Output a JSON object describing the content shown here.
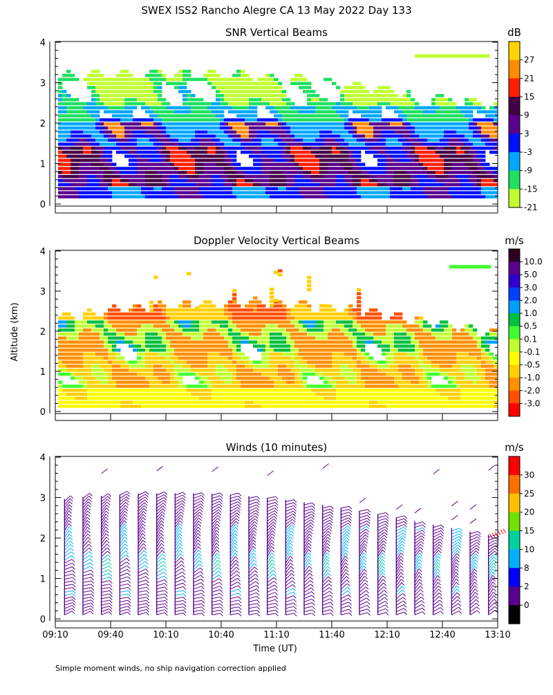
{
  "page": {
    "title": "SWEX ISS2 Rancho Alegre CA  13 May 2022 Day 133",
    "ylabel": "Altitude (km)",
    "xlabel": "Time (UT)",
    "footnote": "Simple moment winds, no ship navigation correction applied"
  },
  "chart_data": [
    {
      "type": "heatmap",
      "title": "SNR Vertical Beams",
      "ylabel": "Altitude (km)",
      "ylim": [
        0,
        4
      ],
      "y_ticks": [
        "0",
        "1",
        "2",
        "3",
        "4"
      ],
      "x_range_minutes_utc": [
        550,
        790
      ],
      "data_top_km_by_hour": {
        "09:10": 3.1,
        "10:10": 3.3,
        "11:10": 3.0,
        "12:10": 3.0,
        "13:10": 2.6
      },
      "colorbar": {
        "unit": "dB",
        "labels": [
          "27",
          "21",
          "15",
          "9",
          "3",
          "-3",
          "-9",
          "-15",
          "-21"
        ],
        "colors": [
          "#ffd400",
          "#ff8c00",
          "#ff2000",
          "#440044",
          "#5a008f",
          "#0010ff",
          "#00a8ff",
          "#20e060",
          "#c0ff30"
        ]
      }
    },
    {
      "type": "heatmap",
      "title": "Doppler Velocity Vertical Beams",
      "ylabel": "Altitude (km)",
      "ylim": [
        0,
        4
      ],
      "y_ticks": [
        "0",
        "1",
        "2",
        "3",
        "4"
      ],
      "colorbar": {
        "unit": "m/s",
        "labels": [
          "10.0",
          "5.0",
          "3.0",
          "2.0",
          "1.0",
          "0.5",
          "0.1",
          "-0.1",
          "-0.5",
          "-1.0",
          "-2.0",
          "-3.0"
        ],
        "colors": [
          "#300020",
          "#5a0090",
          "#3000d0",
          "#0040ff",
          "#00a0ff",
          "#00c040",
          "#40ff30",
          "#c0ff30",
          "#ffff00",
          "#ffd000",
          "#ff9000",
          "#ff5000",
          "#ff0000"
        ]
      }
    },
    {
      "type": "wind-barbs",
      "title": "Winds (10 minutes)",
      "ylabel": "Altitude (km)",
      "xlabel": "Time (UT)",
      "ylim": [
        0,
        4
      ],
      "y_ticks": [
        "0",
        "1",
        "2",
        "3",
        "4"
      ],
      "x_ticks": [
        "09:10",
        "09:40",
        "10:10",
        "10:40",
        "11:10",
        "11:40",
        "12:10",
        "12:40",
        "13:10"
      ],
      "x_tick_minutes": [
        550,
        580,
        610,
        640,
        670,
        700,
        730,
        760,
        790
      ],
      "barb_interval_minutes": 10,
      "colorbar": {
        "unit": "m/s",
        "labels": [
          "30",
          "25",
          "20",
          "15",
          "10",
          "8",
          "2",
          "0"
        ],
        "colors": [
          "#ff0000",
          "#ff7000",
          "#ffc000",
          "#70e000",
          "#00d0a0",
          "#00b0ff",
          "#0000ff",
          "#5a0090",
          "#000000"
        ]
      }
    }
  ]
}
